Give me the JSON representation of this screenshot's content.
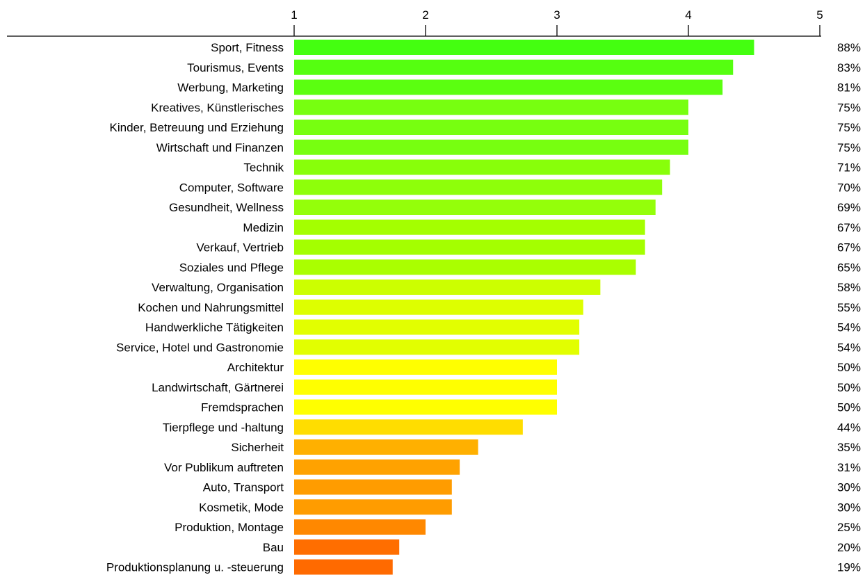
{
  "chart_data": {
    "type": "bar",
    "orientation": "horizontal",
    "title": "",
    "xlabel": "",
    "ylabel": "",
    "xlim": [
      1,
      5
    ],
    "ticks": [
      1,
      2,
      3,
      4,
      5
    ],
    "tick_labels": [
      "1",
      "2",
      "3",
      "4",
      "5"
    ],
    "axis_position": "top",
    "grid": false,
    "legend": "none",
    "categories": [
      "Sport, Fitness",
      "Tourismus, Events",
      "Werbung, Marketing",
      "Kreatives, Künstlerisches",
      "Kinder, Betreuung und Erziehung",
      "Wirtschaft und Finanzen",
      "Technik",
      "Computer, Software",
      "Gesundheit, Wellness",
      "Medizin",
      "Verkauf, Vertrieb",
      "Soziales und Pflege",
      "Verwaltung, Organisation",
      "Kochen und Nahrungsmittel",
      "Handwerkliche Tätigkeiten",
      "Service, Hotel und Gastronomie",
      "Architektur",
      "Landwirtschaft, Gärtnerei",
      "Fremdsprachen",
      "Tierpflege und -haltung",
      "Sicherheit",
      "Vor Publikum auftreten",
      "Auto, Transport",
      "Kosmetik, Mode",
      "Produktion, Montage",
      "Bau",
      "Produktionsplanung u. -steuerung"
    ],
    "values": [
      4.5,
      4.34,
      4.26,
      4.0,
      4.0,
      4.0,
      3.86,
      3.8,
      3.75,
      3.67,
      3.67,
      3.6,
      3.33,
      3.2,
      3.17,
      3.17,
      3.0,
      3.0,
      3.0,
      2.74,
      2.4,
      2.26,
      2.2,
      2.2,
      2.0,
      1.8,
      1.75
    ],
    "percent_labels": [
      "88%",
      "83%",
      "81%",
      "75%",
      "75%",
      "75%",
      "71%",
      "70%",
      "69%",
      "67%",
      "67%",
      "65%",
      "58%",
      "55%",
      "54%",
      "54%",
      "50%",
      "50%",
      "50%",
      "44%",
      "35%",
      "31%",
      "30%",
      "30%",
      "25%",
      "20%",
      "19%"
    ],
    "bar_colors": [
      "#44ff10",
      "#55ff10",
      "#5bff10",
      "#77ff10",
      "#77ff10",
      "#77ff10",
      "#88ff0a",
      "#8eff0a",
      "#94ff0a",
      "#a4ff00",
      "#a4ff00",
      "#aaff00",
      "#ccff00",
      "#ddff00",
      "#e2ff00",
      "#e2ff00",
      "#ffff00",
      "#ffff00",
      "#ffff00",
      "#ffdd00",
      "#ffb000",
      "#ffa200",
      "#ff9c00",
      "#ff9c00",
      "#ff8800",
      "#ff6e00",
      "#ff6a00"
    ]
  }
}
